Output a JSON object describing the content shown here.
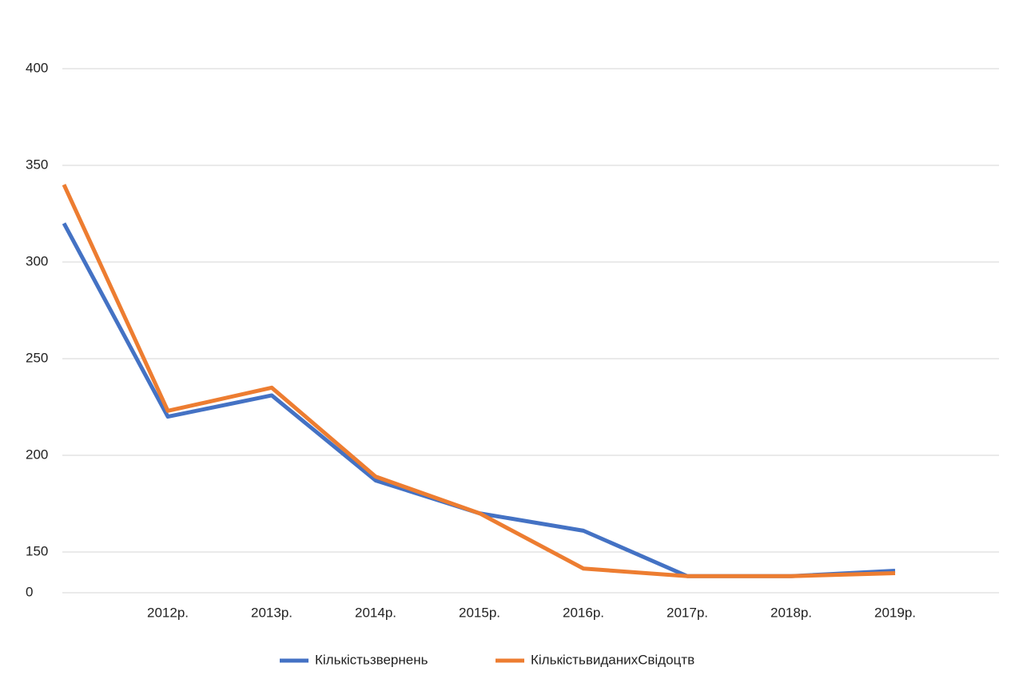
{
  "chart_data": {
    "type": "line",
    "categories": [
      null,
      "2012р.",
      "2013р.",
      "2014р.",
      "2015р.",
      "2016р.",
      "2017р.",
      "2018р.",
      "2019р."
    ],
    "series": [
      {
        "name": "Кількістьзвернень",
        "color": "#4472c4",
        "values": [
          320,
          220,
          231,
          187,
          170,
          161,
          61,
          61,
          81
        ]
      },
      {
        "name": "КількістьвиданихСвідоцтв",
        "color": "#ed7d31",
        "values": [
          340,
          223,
          235,
          189,
          170,
          89,
          61,
          61,
          72
        ]
      }
    ],
    "ylim": [
      0,
      400
    ],
    "yticks": [
      0,
      150,
      200,
      250,
      300,
      350,
      400
    ],
    "grid": true,
    "legend": "bottom"
  }
}
